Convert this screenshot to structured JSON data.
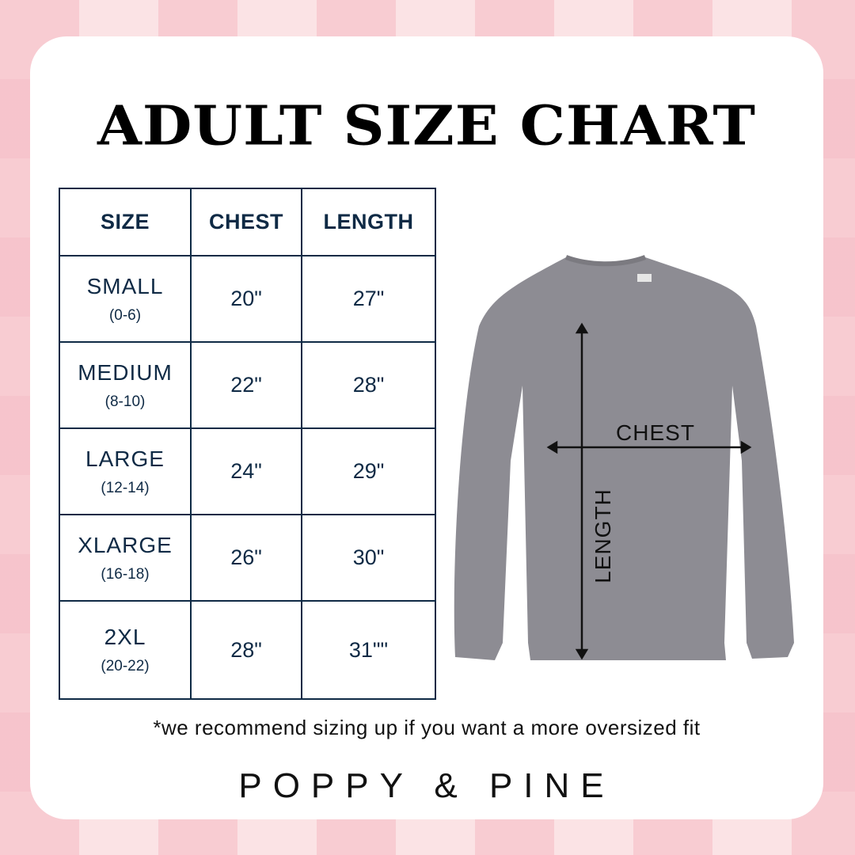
{
  "title": "ADULT SIZE CHART",
  "table": {
    "headers": [
      "SIZE",
      "CHEST",
      "LENGTH"
    ],
    "rows": [
      {
        "size": "SMALL",
        "range": "(0-6)",
        "chest": "20\"",
        "length": "27\""
      },
      {
        "size": "MEDIUM",
        "range": "(8-10)",
        "chest": "22\"",
        "length": "28\""
      },
      {
        "size": "LARGE",
        "range": "(12-14)",
        "chest": "24\"",
        "length": "29\""
      },
      {
        "size": "XLARGE",
        "range": "(16-18)",
        "chest": "26\"",
        "length": "30\""
      },
      {
        "size": "2XL",
        "range": "(20-22)",
        "chest": "28\"",
        "length": "31\"\""
      }
    ]
  },
  "diagram": {
    "chest_label": "CHEST",
    "length_label": "LENGTH",
    "garment_color": "#8d8c93"
  },
  "note": "*we recommend sizing up if you want a more oversized fit",
  "brand": "POPPY & PINE",
  "colors": {
    "table": "#0f2a45",
    "background": "#fbe3e5"
  }
}
